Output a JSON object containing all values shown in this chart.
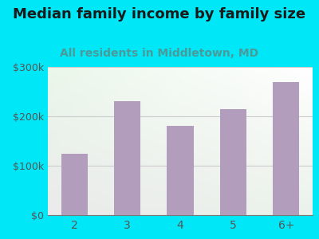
{
  "title": "Median family income by family size",
  "subtitle": "All residents in Middletown, MD",
  "categories": [
    "2",
    "3",
    "4",
    "5",
    "6+"
  ],
  "values": [
    125000,
    230000,
    180000,
    215000,
    270000
  ],
  "bar_color": "#b39dbd",
  "title_fontsize": 13,
  "subtitle_fontsize": 10,
  "subtitle_color": "#4a9a9a",
  "title_color": "#1a1a1a",
  "background_outer": "#00e8f8",
  "ylim": [
    0,
    300000
  ],
  "yticks": [
    0,
    100000,
    200000,
    300000
  ],
  "ytick_labels": [
    "$0",
    "$100k",
    "$200k",
    "$300k"
  ],
  "tick_color": "#555555",
  "grid_color": "#cccccc"
}
